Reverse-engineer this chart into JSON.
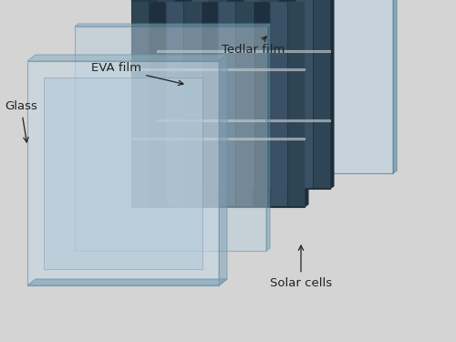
{
  "background_color": "#d4d4d4",
  "labels": {
    "glass": "Glass",
    "eva": "EVA film",
    "tedlar": "Tedlar film",
    "solar": "Solar cells"
  },
  "text_color": "#222222",
  "font_size": 9.5,
  "layers": {
    "tedlar": {
      "face_color": "#c2d4e0",
      "edge_top_color": "#8fa8bc",
      "edge_right_color": "#7a98aa",
      "alpha": 0.85
    },
    "solar": {
      "bg_color": "#1c2a36",
      "stripe_colors": [
        "#2e4558",
        "#1e3040",
        "#3a5568"
      ],
      "stripe_line_color": "#4a6070",
      "edge_color": "#2a3a48"
    },
    "eva": {
      "face_color": "#b8d0e0",
      "edge_color": "#88a8bc",
      "alpha": 0.45
    },
    "glass": {
      "face_color": "#c4d8e4",
      "inner_color": "#b8ceda",
      "edge_top_color": "#90b0c4",
      "edge_right_color": "#80a0b4",
      "edge_bottom_color": "#a0b8c8",
      "alpha": 0.6
    }
  }
}
